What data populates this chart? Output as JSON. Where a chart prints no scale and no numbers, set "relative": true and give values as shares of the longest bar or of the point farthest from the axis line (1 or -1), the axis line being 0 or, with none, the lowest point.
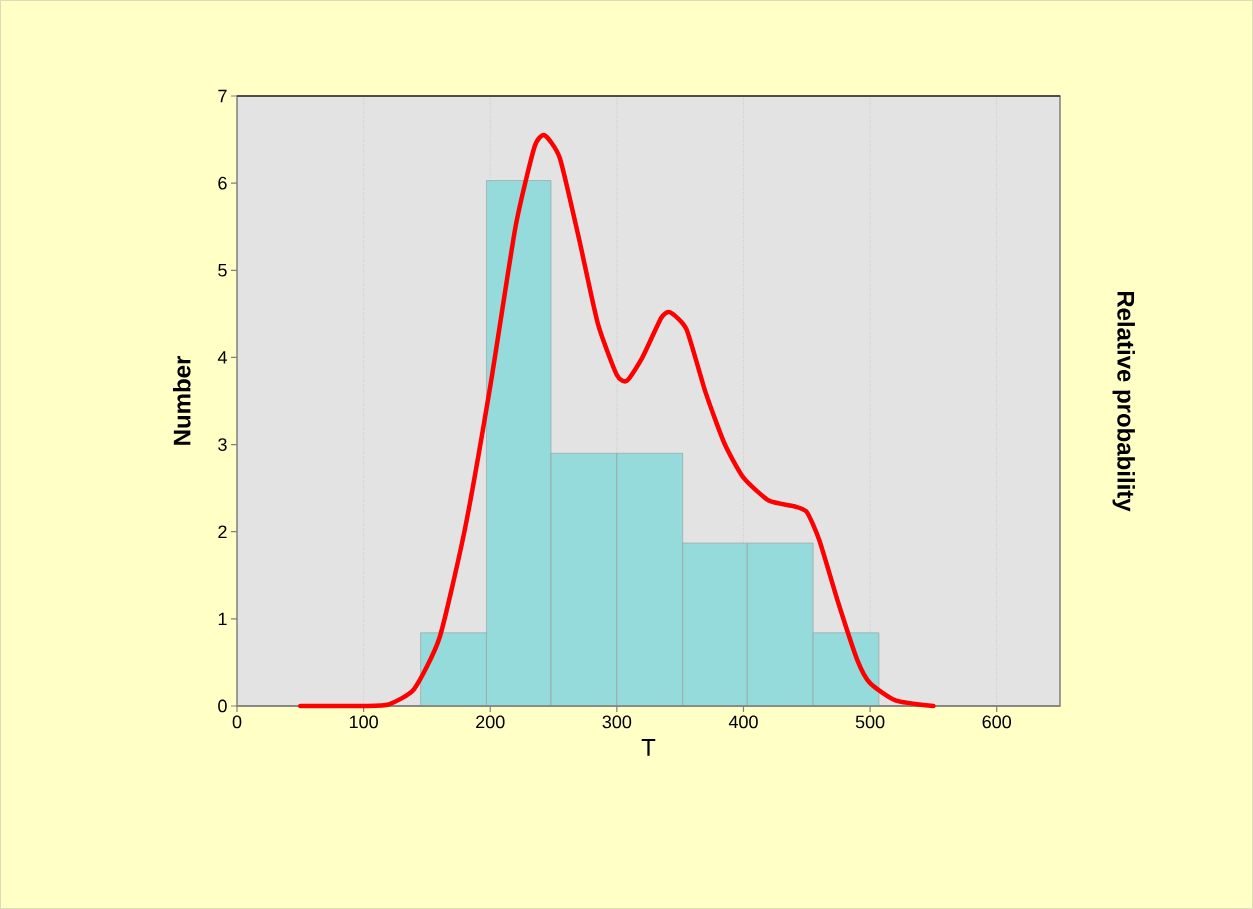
{
  "chart_data": [
    {
      "type": "histogram",
      "xlabel": "T",
      "ylabel": "Number",
      "bins": [
        145,
        197,
        248,
        300,
        352,
        403,
        455,
        507
      ],
      "values": [
        0.84,
        6.03,
        2.9,
        2.9,
        1.87,
        1.87,
        0.84
      ],
      "color": "#96dbdb",
      "xlim": [
        0,
        650
      ],
      "xticks": [
        0,
        100,
        200,
        300,
        400,
        500,
        600
      ],
      "ylim": [
        0,
        7
      ],
      "yticks": [
        0,
        1,
        2,
        3,
        4,
        5,
        6,
        7
      ],
      "grid": "x"
    },
    {
      "type": "line",
      "relative": true,
      "ylabel": "Relative probability",
      "color": "#ff0000",
      "xlim": [
        0,
        650
      ],
      "x": [
        50,
        100,
        120,
        140,
        160,
        180,
        200,
        220,
        235,
        243,
        255,
        270,
        285,
        300,
        308,
        320,
        335,
        342,
        355,
        370,
        385,
        400,
        420,
        440,
        450,
        460,
        475,
        490,
        500,
        520,
        550
      ],
      "values": [
        0,
        0,
        0.003,
        0.03,
        0.12,
        0.31,
        0.56,
        0.84,
        0.98,
        1,
        0.96,
        0.82,
        0.67,
        0.58,
        0.57,
        0.61,
        0.68,
        0.69,
        0.66,
        0.55,
        0.46,
        0.4,
        0.36,
        0.35,
        0.34,
        0.29,
        0.18,
        0.08,
        0.04,
        0.01,
        0
      ]
    }
  ]
}
